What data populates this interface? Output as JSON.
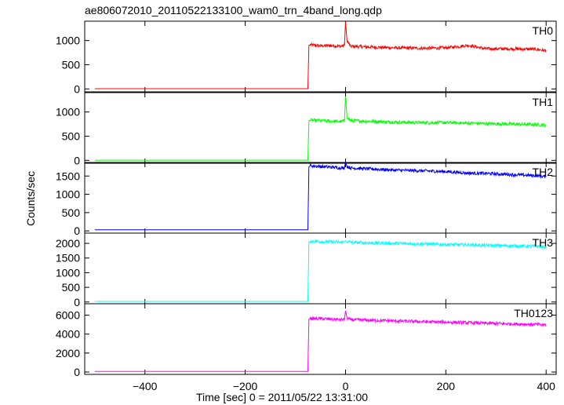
{
  "figure": {
    "title": "ae806072010_20110522133100_wam0_trn_4band_long.qdp",
    "ylabel": "Counts/sec",
    "xlabel": "Time [sec] 0 = 2011/05/22 13:31:00"
  },
  "chart_data": {
    "type": "line",
    "title": "ae806072010_20110522133100_wam0_trn_4band_long.qdp",
    "xlabel": "Time [sec] 0 = 2011/05/22 13:31:00",
    "ylabel": "Counts/sec",
    "xlim": [
      -520,
      420
    ],
    "xticks": [
      -400,
      -200,
      0,
      200,
      400
    ],
    "grid": false,
    "panels": [
      {
        "name": "TH0",
        "color": "#ff0000",
        "ylim": [
          -60,
          1400
        ],
        "yticks": [
          0,
          500,
          1000
        ],
        "series": {
          "x": [
            -500,
            -75,
            -73,
            -70,
            -50,
            -25,
            -10,
            -2,
            0,
            3,
            10,
            40,
            100,
            160,
            200,
            245,
            280,
            330,
            380,
            400
          ],
          "y": [
            5,
            5,
            900,
            910,
            890,
            895,
            880,
            900,
            1380,
            1000,
            880,
            870,
            850,
            840,
            850,
            900,
            830,
            830,
            820,
            790
          ]
        }
      },
      {
        "name": "TH1",
        "color": "#00ff00",
        "ylim": [
          -60,
          1400
        ],
        "yticks": [
          0,
          500,
          1000
        ],
        "series": {
          "x": [
            -500,
            -75,
            -73,
            -70,
            -50,
            -25,
            -10,
            -2,
            0,
            3,
            10,
            40,
            100,
            160,
            200,
            245,
            280,
            330,
            380,
            400
          ],
          "y": [
            3,
            3,
            820,
            830,
            820,
            810,
            800,
            820,
            1320,
            900,
            820,
            810,
            790,
            780,
            780,
            770,
            760,
            750,
            740,
            730
          ]
        }
      },
      {
        "name": "TH2",
        "color": "#0000ff",
        "ylim": [
          -60,
          1870
        ],
        "yticks": [
          0,
          500,
          1000,
          1500
        ],
        "series": {
          "x": [
            -500,
            -75,
            -73,
            -70,
            -50,
            -25,
            -10,
            -2,
            0,
            3,
            10,
            40,
            100,
            160,
            200,
            245,
            280,
            330,
            380,
            400
          ],
          "y": [
            30,
            30,
            1750,
            1780,
            1760,
            1740,
            1720,
            1720,
            1880,
            1760,
            1720,
            1700,
            1660,
            1640,
            1620,
            1580,
            1570,
            1540,
            1510,
            1480
          ]
        }
      },
      {
        "name": "TH3",
        "color": "#00ffff",
        "ylim": [
          -60,
          2350
        ],
        "yticks": [
          0,
          500,
          1000,
          1500,
          2000
        ],
        "series": {
          "x": [
            -500,
            -75,
            -73,
            -70,
            -50,
            -25,
            -10,
            -2,
            0,
            3,
            10,
            40,
            100,
            160,
            200,
            245,
            280,
            330,
            380,
            400
          ],
          "y": [
            20,
            20,
            2050,
            2080,
            2060,
            2050,
            2040,
            2050,
            2090,
            2060,
            2040,
            2020,
            2000,
            1980,
            1960,
            1950,
            1930,
            1920,
            1900,
            1870
          ]
        }
      },
      {
        "name": "TH0123",
        "color": "#ff00ff",
        "ylim": [
          -250,
          7200
        ],
        "yticks": [
          0,
          2000,
          4000,
          6000
        ],
        "series": {
          "x": [
            -500,
            -75,
            -73,
            -70,
            -50,
            -25,
            -10,
            -2,
            0,
            3,
            10,
            40,
            100,
            160,
            200,
            245,
            280,
            330,
            380,
            400
          ],
          "y": [
            60,
            60,
            5600,
            5650,
            5620,
            5580,
            5520,
            5560,
            6450,
            5700,
            5520,
            5480,
            5380,
            5300,
            5260,
            5200,
            5150,
            5080,
            5020,
            4960
          ]
        }
      }
    ]
  }
}
